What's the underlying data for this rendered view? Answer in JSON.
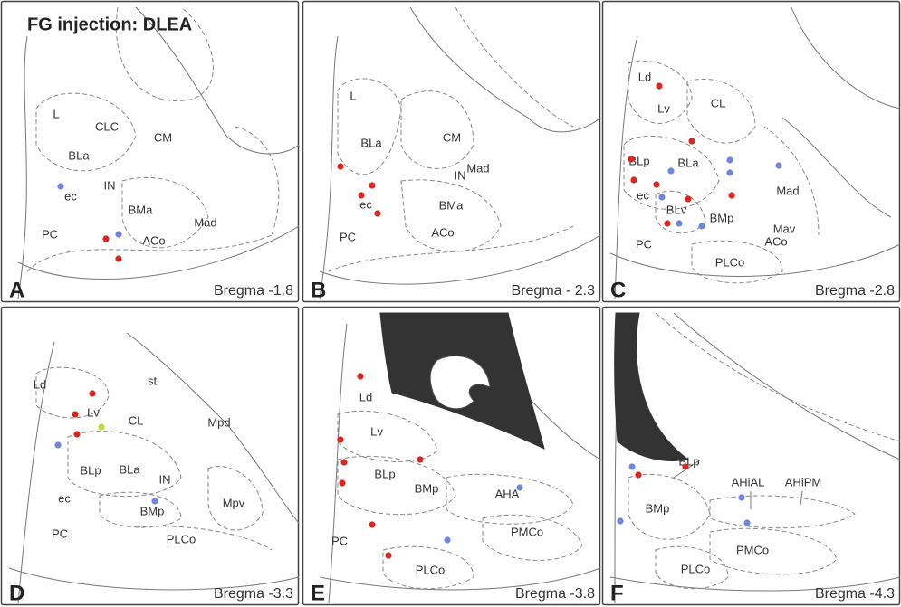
{
  "title": "FG injection: DLEA",
  "panels": [
    {
      "letter": "A",
      "bregma": "Bregma -1.8",
      "regions": [
        "L",
        "CLC",
        "CM",
        "BLa",
        "IN",
        "ec",
        "BMa",
        "Mad",
        "PC",
        "ACo"
      ]
    },
    {
      "letter": "B",
      "bregma": "Bregma - 2.3",
      "regions": [
        "L",
        "BLa",
        "CM",
        "IN",
        "Mad",
        "ec",
        "BMa",
        "PC",
        "ACo"
      ]
    },
    {
      "letter": "C",
      "bregma": "Bregma -2.8",
      "regions": [
        "Ld",
        "CL",
        "Lv",
        "BLp",
        "BLa",
        "ec",
        "Mad",
        "BLv",
        "BMp",
        "PC",
        "Mav",
        "ACo",
        "PLCo"
      ]
    },
    {
      "letter": "D",
      "bregma": "Bregma -3.3",
      "regions": [
        "Ld",
        "st",
        "Lv",
        "CL",
        "Mpd",
        "BLp",
        "BLa",
        "IN",
        "ec",
        "BMp",
        "Mpv",
        "PC",
        "PLCo"
      ]
    },
    {
      "letter": "E",
      "bregma": "Bregma -3.8",
      "regions": [
        "Ld",
        "Lv",
        "BLp",
        "BMp",
        "AHA",
        "PC",
        "PMCo",
        "PLCo"
      ]
    },
    {
      "letter": "F",
      "bregma": "Bregma -4.3",
      "regions": [
        "BLp",
        "AHiAL",
        "AHiPM",
        "BMp",
        "PMCo",
        "PLCo"
      ]
    }
  ]
}
